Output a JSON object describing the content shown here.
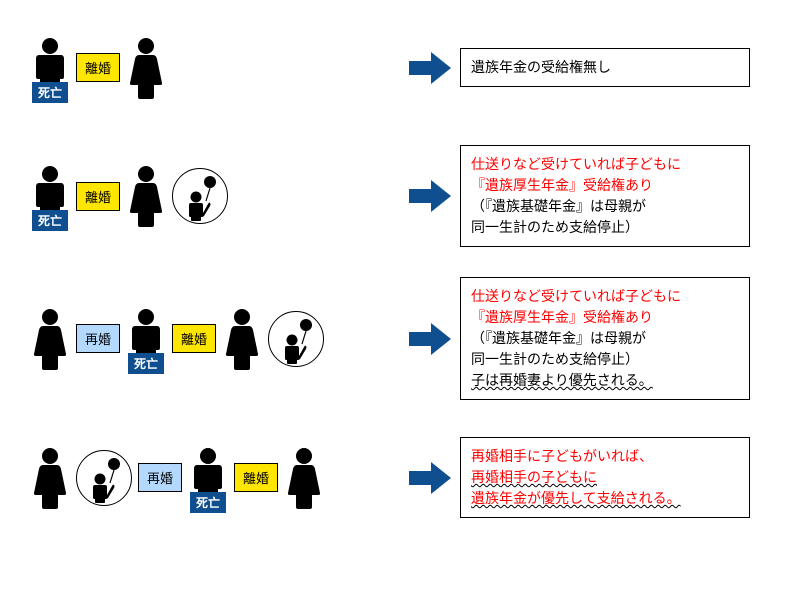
{
  "colors": {
    "death_badge_bg": "#0f4f90",
    "divorce_badge_bg": "#ffe600",
    "remarry_badge_bg": "#b3d9ff",
    "arrow_fill": "#0f4f90",
    "person_fill": "#000000",
    "text_red": "#ff0000",
    "text_black": "#000000",
    "box_border": "#000000"
  },
  "labels": {
    "death": "死亡",
    "divorce": "離婚",
    "remarry": "再婚"
  },
  "rows": [
    {
      "scenario": "divorced-no-child",
      "left_sequence": [
        "man-death",
        "divorce-badge",
        "woman"
      ],
      "result_lines": [
        {
          "text": "遺族年金の受給権無し",
          "color": "black",
          "wavy": false
        }
      ]
    },
    {
      "scenario": "divorced-with-child",
      "left_sequence": [
        "man-death",
        "divorce-badge",
        "woman",
        "child-circle"
      ],
      "result_lines": [
        {
          "text": "仕送りなど受けていれば子どもに",
          "color": "red",
          "wavy": false
        },
        {
          "text": "『遺族厚生年金』受給権あり",
          "color": "red",
          "wavy": false
        },
        {
          "text": "（『遺族基礎年金』は母親が",
          "color": "black",
          "wavy": false
        },
        {
          "text": "同一生計のため支給停止）",
          "color": "black",
          "wavy": false
        }
      ]
    },
    {
      "scenario": "remarried-exwife-child",
      "left_sequence": [
        "woman",
        "remarry-badge",
        "man-death",
        "divorce-badge",
        "woman",
        "child-circle"
      ],
      "result_lines": [
        {
          "text": "仕送りなど受けていれば子どもに",
          "color": "red",
          "wavy": false
        },
        {
          "text": "『遺族厚生年金』受給権あり",
          "color": "red",
          "wavy": false
        },
        {
          "text": "（『遺族基礎年金』は母親が",
          "color": "black",
          "wavy": false
        },
        {
          "text": "同一生計のため支給停止）",
          "color": "black",
          "wavy": false
        },
        {
          "text": "子は再婚妻より優先される。",
          "color": "black",
          "wavy": true
        }
      ]
    },
    {
      "scenario": "remarried-newwife-child",
      "left_sequence": [
        "woman",
        "child-circle",
        "remarry-badge",
        "man-death",
        "divorce-badge",
        "woman"
      ],
      "result_lines": [
        {
          "text": "再婚相手に子どもがいれば、",
          "color": "red",
          "wavy": false
        },
        {
          "text": "再婚相手の子どもに",
          "color": "red",
          "wavy": true
        },
        {
          "text": "遺族年金が優先して支給される。",
          "color": "red",
          "wavy": true
        }
      ]
    }
  ]
}
